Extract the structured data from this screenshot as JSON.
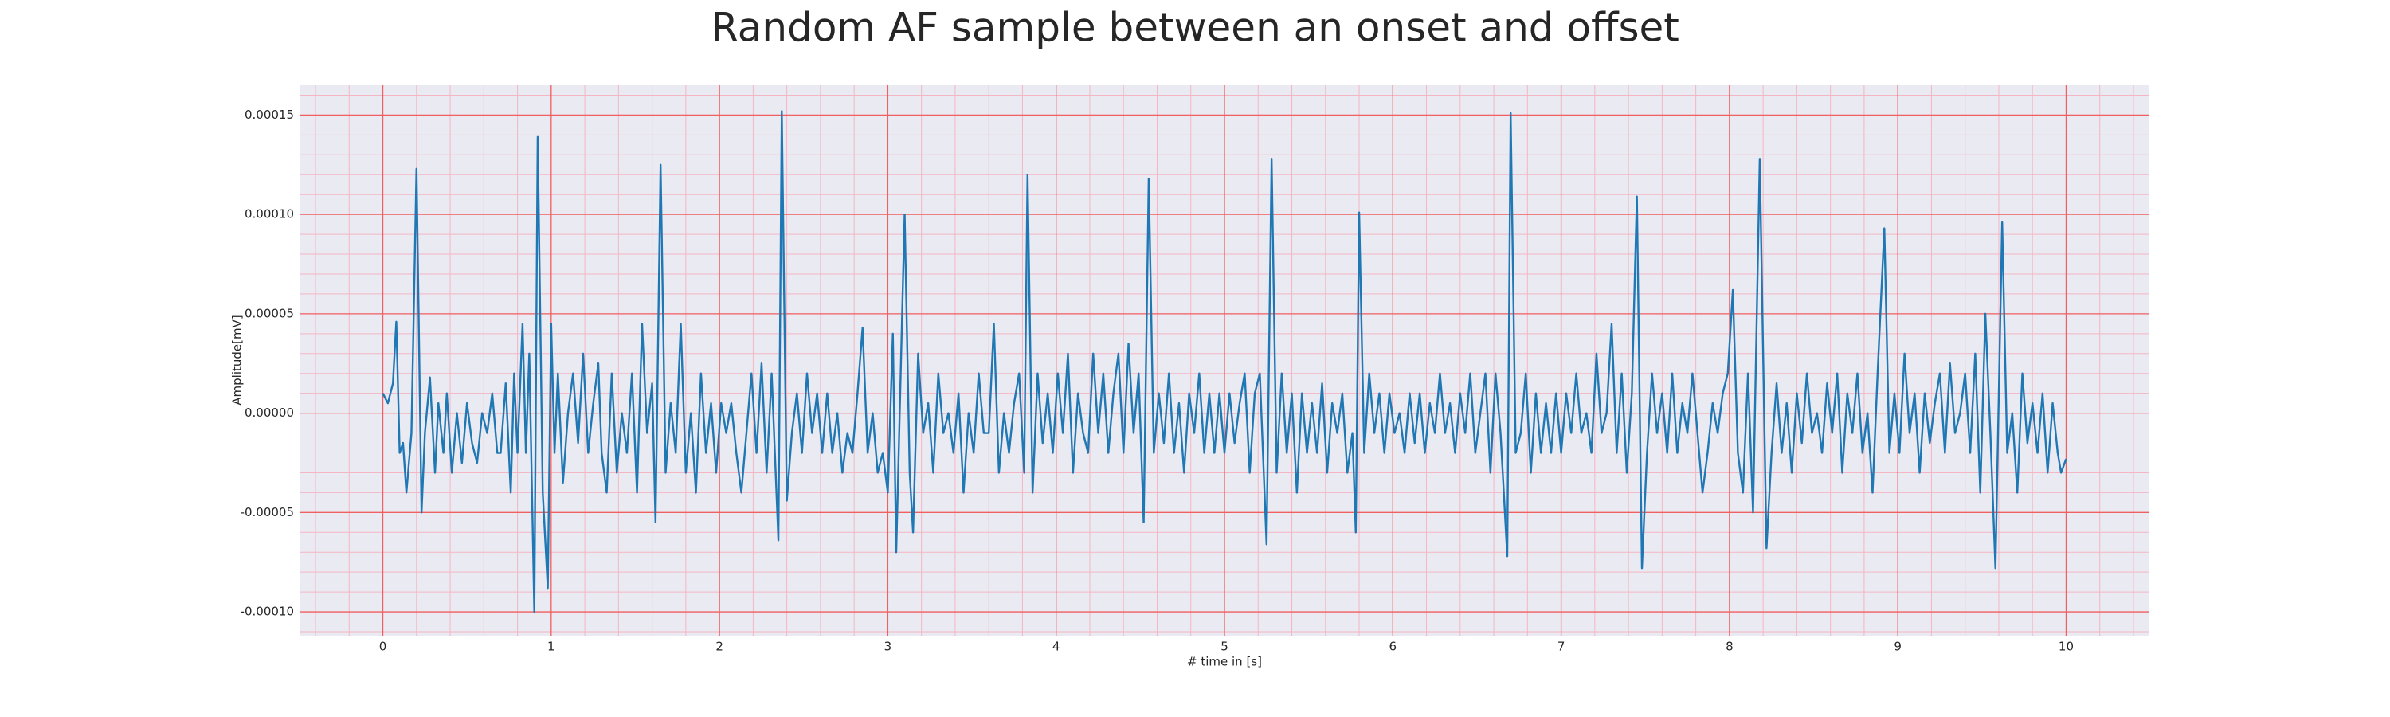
{
  "chart_data": {
    "type": "line",
    "title": "Random AF sample between an onset and offset",
    "xlabel": "# time in [s]",
    "ylabel": "Amplitude[mV]",
    "color": "#1f77b4",
    "grid": true,
    "xlim": [
      -0.49,
      10.49
    ],
    "ylim": [
      -0.000112,
      0.000165
    ],
    "xticks": [
      0,
      1,
      2,
      3,
      4,
      5,
      6,
      7,
      8,
      9,
      10
    ],
    "yticks": [
      {
        "value": -0.0001,
        "label": "-0.00010"
      },
      {
        "value": -5e-05,
        "label": "-0.00005"
      },
      {
        "value": 0,
        "label": "0.00000"
      },
      {
        "value": 5e-05,
        "label": "0.00005"
      },
      {
        "value": 0.0001,
        "label": "0.00010"
      },
      {
        "value": 0.00015,
        "label": "0.00015"
      }
    ],
    "x": [
      0,
      0.03,
      0.06,
      0.08,
      0.1,
      0.12,
      0.14,
      0.17,
      0.2,
      0.23,
      0.25,
      0.28,
      0.31,
      0.33,
      0.36,
      0.38,
      0.41,
      0.44,
      0.47,
      0.5,
      0.53,
      0.56,
      0.59,
      0.62,
      0.65,
      0.68,
      0.7,
      0.73,
      0.76,
      0.78,
      0.8,
      0.83,
      0.85,
      0.87,
      0.9,
      0.92,
      0.95,
      0.98,
      1.0,
      1.02,
      1.04,
      1.07,
      1.1,
      1.13,
      1.16,
      1.19,
      1.22,
      1.25,
      1.28,
      1.3,
      1.33,
      1.36,
      1.39,
      1.42,
      1.45,
      1.48,
      1.51,
      1.54,
      1.57,
      1.6,
      1.62,
      1.65,
      1.68,
      1.71,
      1.74,
      1.77,
      1.8,
      1.83,
      1.86,
      1.89,
      1.92,
      1.95,
      1.98,
      2.01,
      2.04,
      2.07,
      2.1,
      2.13,
      2.16,
      2.19,
      2.22,
      2.25,
      2.28,
      2.31,
      2.35,
      2.37,
      2.4,
      2.43,
      2.46,
      2.49,
      2.52,
      2.55,
      2.58,
      2.61,
      2.64,
      2.67,
      2.7,
      2.73,
      2.76,
      2.79,
      2.82,
      2.85,
      2.88,
      2.91,
      2.94,
      2.97,
      3.0,
      3.03,
      3.05,
      3.1,
      3.13,
      3.15,
      3.18,
      3.21,
      3.24,
      3.27,
      3.3,
      3.33,
      3.36,
      3.39,
      3.42,
      3.45,
      3.48,
      3.51,
      3.54,
      3.57,
      3.6,
      3.63,
      3.66,
      3.69,
      3.72,
      3.75,
      3.78,
      3.81,
      3.83,
      3.86,
      3.89,
      3.92,
      3.95,
      3.98,
      4.01,
      4.04,
      4.07,
      4.1,
      4.13,
      4.16,
      4.19,
      4.22,
      4.25,
      4.28,
      4.31,
      4.34,
      4.37,
      4.4,
      4.43,
      4.46,
      4.49,
      4.52,
      4.55,
      4.58,
      4.61,
      4.64,
      4.67,
      4.7,
      4.73,
      4.76,
      4.79,
      4.82,
      4.85,
      4.88,
      4.91,
      4.94,
      4.97,
      5.0,
      5.03,
      5.06,
      5.09,
      5.12,
      5.15,
      5.18,
      5.21,
      5.25,
      5.28,
      5.31,
      5.34,
      5.37,
      5.4,
      5.43,
      5.46,
      5.49,
      5.52,
      5.55,
      5.58,
      5.61,
      5.64,
      5.67,
      5.7,
      5.73,
      5.76,
      5.78,
      5.8,
      5.83,
      5.86,
      5.89,
      5.92,
      5.95,
      5.98,
      6.01,
      6.04,
      6.07,
      6.1,
      6.13,
      6.16,
      6.19,
      6.22,
      6.25,
      6.28,
      6.31,
      6.34,
      6.37,
      6.4,
      6.43,
      6.46,
      6.49,
      6.52,
      6.55,
      6.58,
      6.61,
      6.64,
      6.68,
      6.7,
      6.73,
      6.76,
      6.79,
      6.82,
      6.85,
      6.88,
      6.91,
      6.94,
      6.97,
      7.0,
      7.03,
      7.06,
      7.09,
      7.12,
      7.15,
      7.18,
      7.21,
      7.24,
      7.27,
      7.3,
      7.33,
      7.36,
      7.39,
      7.42,
      7.45,
      7.48,
      7.51,
      7.54,
      7.57,
      7.6,
      7.63,
      7.66,
      7.69,
      7.72,
      7.75,
      7.78,
      7.81,
      7.84,
      7.87,
      7.9,
      7.93,
      7.96,
      7.99,
      8.02,
      8.05,
      8.08,
      8.11,
      8.14,
      8.18,
      8.22,
      8.25,
      8.28,
      8.31,
      8.34,
      8.37,
      8.4,
      8.43,
      8.46,
      8.49,
      8.52,
      8.55,
      8.58,
      8.61,
      8.64,
      8.67,
      8.7,
      8.73,
      8.76,
      8.79,
      8.82,
      8.85,
      8.88,
      8.92,
      8.95,
      8.98,
      9.01,
      9.04,
      9.07,
      9.1,
      9.13,
      9.16,
      9.19,
      9.22,
      9.25,
      9.28,
      9.31,
      9.34,
      9.37,
      9.4,
      9.43,
      9.46,
      9.49,
      9.52,
      9.55,
      9.58,
      9.62,
      9.65,
      9.68,
      9.71,
      9.74,
      9.77,
      9.8,
      9.83,
      9.86,
      9.89,
      9.92,
      9.95,
      9.97,
      10
    ],
    "values": [
      1e-05,
      5e-06,
      1.5e-05,
      4.6e-05,
      -2e-05,
      -1.5e-05,
      -4e-05,
      -1e-05,
      0.000123,
      -5e-05,
      -1e-05,
      1.8e-05,
      -3e-05,
      5e-06,
      -2e-05,
      1e-05,
      -3e-05,
      0,
      -2.5e-05,
      5e-06,
      -1.5e-05,
      -2.5e-05,
      0,
      -1e-05,
      1e-05,
      -2e-05,
      -2e-05,
      1.5e-05,
      -4e-05,
      2e-05,
      -2e-05,
      4.5e-05,
      -2e-05,
      3e-05,
      -0.0001,
      0.000139,
      -4e-05,
      -8.8e-05,
      4.5e-05,
      -2e-05,
      2e-05,
      -3.5e-05,
      0,
      2e-05,
      -1.5e-05,
      3e-05,
      -2e-05,
      5e-06,
      2.5e-05,
      -2e-05,
      -4e-05,
      2e-05,
      -3e-05,
      0,
      -2e-05,
      2e-05,
      -4e-05,
      4.5e-05,
      -1e-05,
      1.5e-05,
      -5.5e-05,
      0.000125,
      -3e-05,
      5e-06,
      -2e-05,
      4.5e-05,
      -3e-05,
      0,
      -4e-05,
      2e-05,
      -2e-05,
      5e-06,
      -3e-05,
      5e-06,
      -1e-05,
      5e-06,
      -2e-05,
      -4e-05,
      -1e-05,
      2e-05,
      -2e-05,
      2.5e-05,
      -3e-05,
      2e-05,
      -6.4e-05,
      0.000152,
      -4.4e-05,
      -1e-05,
      1e-05,
      -2e-05,
      2e-05,
      -1e-05,
      1e-05,
      -2e-05,
      1e-05,
      -2e-05,
      0,
      -3e-05,
      -1e-05,
      -2e-05,
      1e-05,
      4.3e-05,
      -2e-05,
      0,
      -3e-05,
      -2e-05,
      -4e-05,
      4e-05,
      -7e-05,
      0.0001,
      -3e-05,
      -6e-05,
      3e-05,
      -1e-05,
      5e-06,
      -3e-05,
      2e-05,
      -1e-05,
      0,
      -2e-05,
      1e-05,
      -4e-05,
      0,
      -2e-05,
      2e-05,
      -1e-05,
      -1e-05,
      4.5e-05,
      -3e-05,
      0,
      -2e-05,
      5e-06,
      2e-05,
      -3e-05,
      0.00012,
      -4e-05,
      2e-05,
      -1.5e-05,
      1e-05,
      -2e-05,
      2e-05,
      -1e-05,
      3e-05,
      -3e-05,
      1e-05,
      -1e-05,
      -2e-05,
      3e-05,
      -1e-05,
      2e-05,
      -2e-05,
      1e-05,
      3e-05,
      -2e-05,
      3.5e-05,
      -1e-05,
      2e-05,
      -5.5e-05,
      0.000118,
      -2e-05,
      1e-05,
      -1.5e-05,
      2e-05,
      -2e-05,
      5e-06,
      -3e-05,
      1e-05,
      -1e-05,
      2e-05,
      -2e-05,
      1e-05,
      -2e-05,
      1e-05,
      -2e-05,
      1e-05,
      -1.5e-05,
      5e-06,
      2e-05,
      -3e-05,
      1e-05,
      2e-05,
      -6.6e-05,
      0.000128,
      -3e-05,
      2e-05,
      -2e-05,
      1e-05,
      -4e-05,
      1e-05,
      -2e-05,
      5e-06,
      -2e-05,
      1.5e-05,
      -3e-05,
      5e-06,
      -1e-05,
      1e-05,
      -3e-05,
      -1e-05,
      -6e-05,
      0.000101,
      -2e-05,
      2e-05,
      -1e-05,
      1e-05,
      -2e-05,
      1e-05,
      -1e-05,
      0,
      -2e-05,
      1e-05,
      -1.5e-05,
      1e-05,
      -2e-05,
      5e-06,
      -1e-05,
      2e-05,
      -1e-05,
      5e-06,
      -2e-05,
      1e-05,
      -1e-05,
      2e-05,
      -2e-05,
      0,
      2e-05,
      -3e-05,
      2e-05,
      -1e-05,
      -7.2e-05,
      0.000151,
      -2e-05,
      -1e-05,
      2e-05,
      -3e-05,
      1e-05,
      -2e-05,
      5e-06,
      -2e-05,
      1e-05,
      -2e-05,
      1e-05,
      -1e-05,
      2e-05,
      -1e-05,
      0,
      -2e-05,
      3e-05,
      -1e-05,
      0,
      4.5e-05,
      -2e-05,
      2e-05,
      -3e-05,
      1e-05,
      0.000109,
      -7.8e-05,
      -2e-05,
      2e-05,
      -1e-05,
      1e-05,
      -2e-05,
      2e-05,
      -2e-05,
      5e-06,
      -1e-05,
      2e-05,
      -1e-05,
      -4e-05,
      -2e-05,
      5e-06,
      -1e-05,
      1e-05,
      2e-05,
      6.2e-05,
      -2e-05,
      -4e-05,
      2e-05,
      -5e-05,
      0.000128,
      -6.8e-05,
      -2e-05,
      1.5e-05,
      -2e-05,
      5e-06,
      -3e-05,
      1e-05,
      -1.5e-05,
      2e-05,
      -1e-05,
      0,
      -2e-05,
      1.5e-05,
      -1e-05,
      2e-05,
      -3e-05,
      1e-05,
      -1e-05,
      2e-05,
      -2e-05,
      0,
      -4e-05,
      2e-05,
      9.3e-05,
      -2e-05,
      1e-05,
      -2e-05,
      3e-05,
      -1e-05,
      1e-05,
      -3e-05,
      1e-05,
      -1.5e-05,
      5e-06,
      2e-05,
      -2e-05,
      2.5e-05,
      -1e-05,
      0,
      2e-05,
      -2e-05,
      3e-05,
      -4e-05,
      5e-05,
      -1e-05,
      -7.8e-05,
      9.6e-05,
      -2e-05,
      0,
      -4e-05,
      2e-05,
      -1.5e-05,
      5e-06,
      -2e-05,
      1e-05,
      -3e-05,
      5e-06,
      -2e-05,
      -3e-05,
      -2.3e-05
    ]
  }
}
